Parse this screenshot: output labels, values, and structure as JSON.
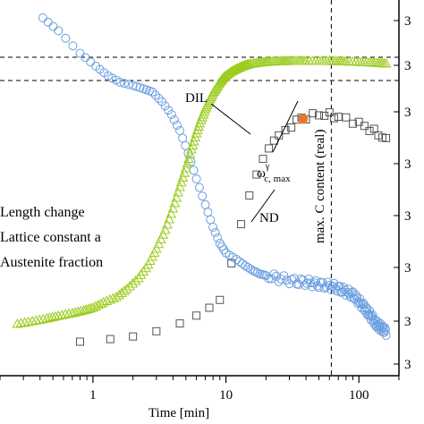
{
  "chart_data": {
    "type": "scatter",
    "xlabel": "Time [min]",
    "xscale": "log",
    "xlim": [
      0.2,
      200
    ],
    "x_tick_labels": [
      "1",
      "10",
      "100"
    ],
    "x_ticks": [
      1,
      10,
      100
    ],
    "y_tick_label_fragments": [
      "3",
      "3",
      "3",
      "3",
      "3",
      "3",
      "3",
      "3"
    ],
    "legend": {
      "placement": "center-left",
      "entries": [
        "Length change",
        "Lattice constant a",
        "Austenite fraction"
      ]
    },
    "annotations": {
      "dil": "DIL",
      "nd": "ND",
      "omega_main": "ω",
      "omega_sup": "γ",
      "omega_sub": "c, max",
      "vertical_line": "max. C content (real)"
    },
    "vertical_line_x": 62,
    "colors": {
      "length_change": "#9ccc1f",
      "lattice_constant": "#6a9ee0",
      "austenite_fraction": "#555555",
      "max_marker": "#e8772e"
    },
    "series": [
      {
        "name": "Length change",
        "marker": "triangle",
        "x": [
          0.27,
          0.35,
          0.45,
          0.55,
          0.7,
          0.85,
          1.0,
          1.2,
          1.5,
          1.8,
          2.2,
          2.6,
          3.0,
          3.5,
          4.0,
          4.5,
          5.0,
          5.5,
          6.0,
          6.5,
          7.0,
          7.5,
          8.0,
          8.5,
          9.0,
          9.5,
          10,
          11,
          12,
          13,
          14,
          15,
          17,
          19,
          21,
          24,
          27,
          30,
          35,
          40,
          50,
          60,
          70,
          80,
          100,
          120,
          140,
          160
        ],
        "y": [
          0.02,
          0.03,
          0.04,
          0.05,
          0.06,
          0.07,
          0.08,
          0.1,
          0.12,
          0.15,
          0.19,
          0.24,
          0.3,
          0.37,
          0.45,
          0.53,
          0.6,
          0.67,
          0.73,
          0.78,
          0.82,
          0.85,
          0.88,
          0.9,
          0.92,
          0.935,
          0.945,
          0.96,
          0.97,
          0.978,
          0.984,
          0.988,
          0.992,
          0.995,
          0.997,
          0.998,
          0.999,
          1.0,
          1.0,
          1.0,
          1.0,
          1.0,
          0.999,
          0.998,
          0.996,
          0.994,
          0.992,
          0.99
        ]
      },
      {
        "name": "Lattice constant a",
        "marker": "circle",
        "x": [
          0.42,
          0.55,
          0.8,
          1.05,
          1.3,
          1.6,
          2.0,
          2.4,
          2.8,
          3.3,
          3.9,
          4.5,
          5.2,
          6.0,
          7.0,
          8.0,
          9.0,
          10,
          12,
          14,
          16,
          18,
          20,
          23,
          26,
          30,
          34,
          38,
          42,
          46,
          50,
          55,
          60,
          65,
          70,
          75,
          80,
          85,
          90,
          95,
          100,
          105,
          110,
          115,
          120,
          125,
          130,
          135,
          140,
          145,
          150,
          155,
          160
        ],
        "y": [
          1.0,
          0.96,
          0.89,
          0.85,
          0.82,
          0.8,
          0.79,
          0.78,
          0.77,
          0.74,
          0.7,
          0.65,
          0.58,
          0.5,
          0.42,
          0.35,
          0.3,
          0.27,
          0.25,
          0.23,
          0.215,
          0.205,
          0.2,
          0.195,
          0.19,
          0.185,
          0.18,
          0.18,
          0.178,
          0.175,
          0.172,
          0.17,
          0.168,
          0.165,
          0.16,
          0.155,
          0.15,
          0.145,
          0.14,
          0.13,
          0.12,
          0.11,
          0.1,
          0.09,
          0.08,
          0.07,
          0.06,
          0.05,
          0.045,
          0.04,
          0.035,
          0.03,
          0.025
        ]
      },
      {
        "name": "Austenite fraction",
        "marker": "square",
        "x": [
          0.8,
          1.35,
          2.0,
          3.0,
          4.5,
          6.0,
          7.5,
          9.0,
          11,
          13,
          15,
          17,
          19,
          21,
          23,
          25,
          28,
          31,
          34,
          37,
          40,
          45,
          50,
          55,
          60,
          65,
          70,
          80,
          90,
          100,
          110,
          120,
          130,
          140,
          150,
          160
        ],
        "y": [
          0.0,
          0.01,
          0.02,
          0.04,
          0.07,
          0.1,
          0.13,
          0.16,
          0.3,
          0.45,
          0.56,
          0.64,
          0.7,
          0.74,
          0.77,
          0.79,
          0.81,
          0.83,
          0.845,
          0.855,
          0.86,
          0.865,
          0.87,
          0.87,
          0.868,
          0.864,
          0.86,
          0.852,
          0.845,
          0.835,
          0.825,
          0.815,
          0.805,
          0.795,
          0.785,
          0.77
        ]
      }
    ],
    "max_point": {
      "x": 38,
      "y": 0.86
    }
  }
}
